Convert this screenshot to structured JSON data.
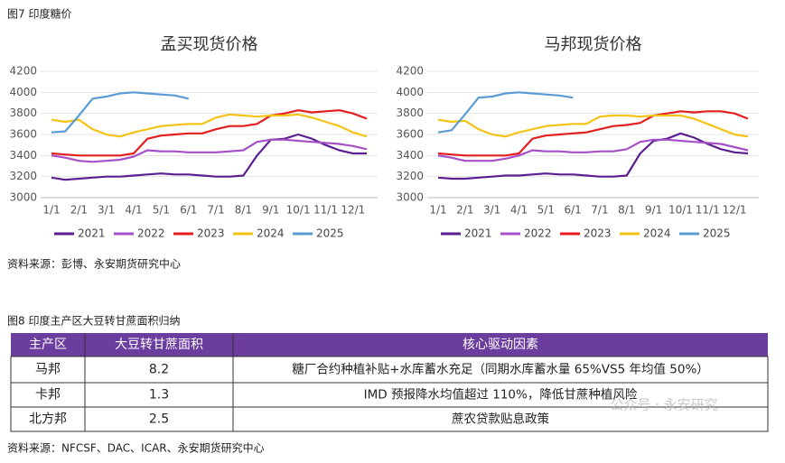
{
  "figure7": {
    "caption": "图7 印度糖价",
    "source": "资料来源：彭博、永安期货研究中心"
  },
  "chart_data": [
    {
      "type": "line",
      "title": "孟买现货价格",
      "categories": [
        "1/1",
        null,
        "2/1",
        null,
        "3/1",
        null,
        "4/1",
        null,
        "5/1",
        null,
        "6/1",
        null,
        "7/1",
        null,
        "8/1",
        null,
        "9/1",
        null,
        "10/1",
        null,
        "11/1",
        null,
        "12/1",
        null
      ],
      "ylim": [
        3000,
        4200
      ],
      "yticks": [
        3000,
        3200,
        3400,
        3600,
        3800,
        4000,
        4200
      ],
      "grid": true,
      "legend": "bottom",
      "series": [
        {
          "name": "2021",
          "color": "#5b1f91",
          "values": [
            3190,
            3170,
            3180,
            3190,
            3200,
            3200,
            3210,
            3220,
            3230,
            3220,
            3220,
            3210,
            3200,
            3200,
            3210,
            3400,
            3550,
            3560,
            3600,
            3560,
            3500,
            3450,
            3420,
            3420
          ]
        },
        {
          "name": "2022",
          "color": "#a550c8",
          "values": [
            3400,
            3380,
            3350,
            3340,
            3350,
            3360,
            3390,
            3450,
            3440,
            3440,
            3430,
            3430,
            3430,
            3440,
            3450,
            3530,
            3550,
            3550,
            3540,
            3530,
            3520,
            3510,
            3490,
            3460
          ]
        },
        {
          "name": "2023",
          "color": "#e41e1e",
          "values": [
            3420,
            3410,
            3400,
            3400,
            3400,
            3400,
            3420,
            3560,
            3590,
            3600,
            3610,
            3610,
            3650,
            3680,
            3680,
            3700,
            3780,
            3800,
            3830,
            3810,
            3820,
            3830,
            3800,
            3750
          ]
        },
        {
          "name": "2024",
          "color": "#f5c316",
          "values": [
            3740,
            3720,
            3740,
            3650,
            3600,
            3580,
            3620,
            3650,
            3680,
            3690,
            3700,
            3700,
            3760,
            3790,
            3780,
            3770,
            3780,
            3780,
            3790,
            3760,
            3720,
            3680,
            3620,
            3580
          ]
        },
        {
          "name": "2025",
          "color": "#5b9bd5",
          "values": [
            3620,
            3630,
            3780,
            3940,
            3960,
            3990,
            4000,
            3990,
            3980,
            3970,
            3940,
            null,
            null,
            null,
            null,
            null,
            null,
            null,
            null,
            null,
            null,
            null,
            null,
            null
          ]
        }
      ]
    },
    {
      "type": "line",
      "title": "马邦现货价格",
      "categories": [
        "1/1",
        null,
        "2/1",
        null,
        "3/1",
        null,
        "4/1",
        null,
        "5/1",
        null,
        "6/1",
        null,
        "7/1",
        null,
        "8/1",
        null,
        "9/1",
        null,
        "10/1",
        null,
        "11/1",
        null,
        "12/1",
        null
      ],
      "ylim": [
        3000,
        4200
      ],
      "yticks": [
        3000,
        3200,
        3400,
        3600,
        3800,
        4000,
        4200
      ],
      "grid": true,
      "legend": "bottom",
      "series": [
        {
          "name": "2021",
          "color": "#5b1f91",
          "values": [
            3190,
            3180,
            3180,
            3190,
            3200,
            3210,
            3210,
            3220,
            3230,
            3220,
            3220,
            3210,
            3200,
            3200,
            3210,
            3420,
            3540,
            3560,
            3610,
            3570,
            3510,
            3460,
            3430,
            3420
          ]
        },
        {
          "name": "2022",
          "color": "#a550c8",
          "values": [
            3400,
            3380,
            3350,
            3350,
            3350,
            3370,
            3400,
            3450,
            3440,
            3440,
            3430,
            3430,
            3440,
            3440,
            3460,
            3530,
            3550,
            3550,
            3540,
            3530,
            3520,
            3510,
            3480,
            3450
          ]
        },
        {
          "name": "2023",
          "color": "#e41e1e",
          "values": [
            3420,
            3410,
            3400,
            3400,
            3400,
            3400,
            3420,
            3560,
            3590,
            3600,
            3610,
            3620,
            3650,
            3680,
            3690,
            3710,
            3780,
            3800,
            3820,
            3810,
            3820,
            3820,
            3800,
            3750
          ]
        },
        {
          "name": "2024",
          "color": "#f5c316",
          "values": [
            3740,
            3720,
            3730,
            3650,
            3600,
            3580,
            3620,
            3650,
            3680,
            3690,
            3700,
            3700,
            3770,
            3780,
            3780,
            3770,
            3780,
            3780,
            3780,
            3750,
            3700,
            3650,
            3600,
            3580
          ]
        },
        {
          "name": "2025",
          "color": "#5b9bd5",
          "values": [
            3620,
            3640,
            3790,
            3950,
            3960,
            3990,
            4000,
            3990,
            3980,
            3970,
            3950,
            null,
            null,
            null,
            null,
            null,
            null,
            null,
            null,
            null,
            null,
            null,
            null,
            null
          ]
        }
      ]
    }
  ],
  "figure8": {
    "caption": "图8 印度主产区大豆转甘蔗面积归纳",
    "table": {
      "header": [
        "主产区",
        "大豆转甘蔗面积",
        "核心驱动因素"
      ],
      "rows": [
        [
          "马邦",
          "8.2",
          "糖厂合约种植补贴+水库蓄水充足（同期水库蓄水量 65%VS5 年均值 50%）"
        ],
        [
          "卡邦",
          "1.3",
          "IMD 预报降水均值超过 110%，降低甘蔗种植风险"
        ],
        [
          "北方邦",
          "2.5",
          "蔗农贷款贴息政策"
        ]
      ]
    },
    "source": "资料来源：NFCSF、DAC、ICAR、永安期货研究中心"
  },
  "watermark": "公众号 · 永安研究"
}
